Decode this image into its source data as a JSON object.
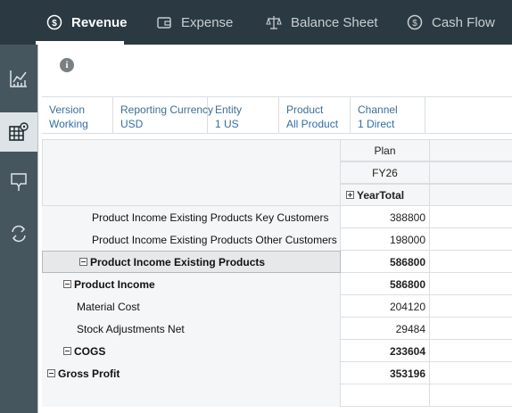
{
  "nav": {
    "tabs": [
      {
        "label": "Revenue",
        "icon": "revenue-icon"
      },
      {
        "label": "Expense",
        "icon": "wallet-icon"
      },
      {
        "label": "Balance Sheet",
        "icon": "scales-icon"
      },
      {
        "label": "Cash Flow",
        "icon": "cash-flow-icon"
      }
    ],
    "active_tab": "Revenue"
  },
  "rail": {
    "items": [
      "chart-icon",
      "grid-settings-icon",
      "flag-icon",
      "refresh-icon"
    ],
    "active_index": 1
  },
  "pov": [
    {
      "label": "Version",
      "value": "Working"
    },
    {
      "label": "Reporting Currency",
      "value": "USD"
    },
    {
      "label": "Entity",
      "value": "1 US"
    },
    {
      "label": "Product",
      "value": "All Product"
    },
    {
      "label": "Channel",
      "value": "1 Direct"
    }
  ],
  "grid": {
    "col_headers": [
      "Plan",
      "FY26",
      "YearTotal"
    ],
    "rows": [
      {
        "label": "Product Income Existing Products Key Customers",
        "value": "388800"
      },
      {
        "label": "Product Income Existing Products Other Customers",
        "value": "198000"
      },
      {
        "label": "Product Income Existing Products",
        "value": "586800"
      },
      {
        "label": "Product Income",
        "value": "586800"
      },
      {
        "label": "Material Cost",
        "value": "204120"
      },
      {
        "label": "Stock Adjustments Net",
        "value": "29484"
      },
      {
        "label": "COGS",
        "value": "233604"
      },
      {
        "label": "Gross Profit",
        "value": "353196"
      }
    ]
  },
  "colors": {
    "topbar": "#2b3a42",
    "rail": "#46565e",
    "link": "#2f6fa8"
  }
}
